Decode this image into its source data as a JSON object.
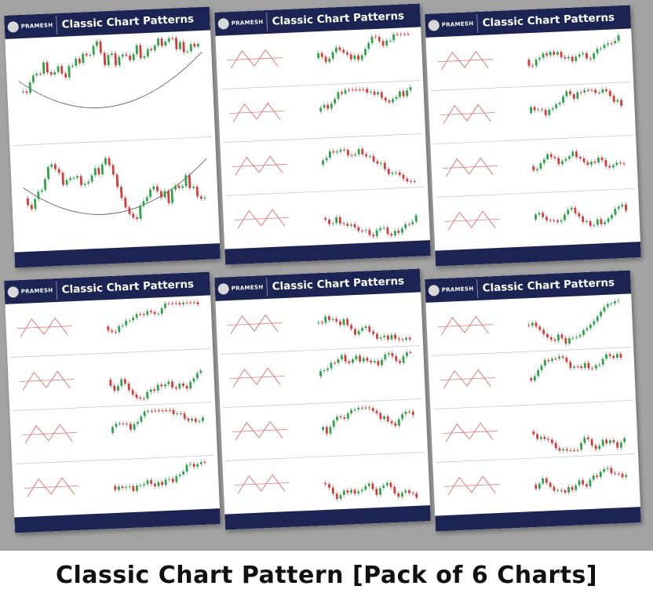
{
  "posters": [
    {
      "brand": "PRAMESH",
      "title": "Classic Chart Patterns"
    },
    {
      "brand": "PRAMESH",
      "title": "Classic Chart Patterns"
    },
    {
      "brand": "PRAMESH",
      "title": "Classic Chart Patterns"
    },
    {
      "brand": "PRAMESH",
      "title": "Classic Chart Patterns"
    },
    {
      "brand": "PRAMESH",
      "title": "Classic Chart Patterns"
    },
    {
      "brand": "PRAMESH",
      "title": "Classic Chart Patterns"
    }
  ],
  "caption": "Classic Chart Pattern [Pack of 6 Charts]"
}
